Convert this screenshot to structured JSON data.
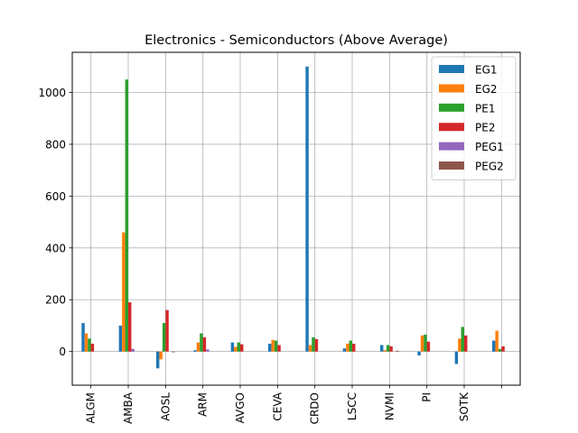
{
  "chart_data": {
    "type": "bar",
    "title": "Electronics - Semiconductors (Above Average)",
    "xlabel": "",
    "ylabel": "",
    "categories": [
      "ALGM",
      "AMBA",
      "AOSL",
      "ARM",
      "AVGO",
      "CEVA",
      "CRDO",
      "LSCC",
      "NVMI",
      "PI",
      "SOTK",
      ""
    ],
    "ylim": [
      -130,
      1155
    ],
    "yticks": [
      0,
      200,
      400,
      600,
      800,
      1000
    ],
    "grid": true,
    "legend_position": "top-right",
    "series": [
      {
        "name": "EG1",
        "color": "#1f77b4",
        "values": [
          110,
          100,
          -65,
          5,
          35,
          30,
          1100,
          12,
          25,
          -15,
          -48,
          42
        ]
      },
      {
        "name": "EG2",
        "color": "#ff7f0e",
        "values": [
          70,
          460,
          -30,
          35,
          18,
          45,
          25,
          30,
          5,
          62,
          50,
          80
        ]
      },
      {
        "name": "PE1",
        "color": "#2ca02c",
        "values": [
          50,
          1050,
          110,
          70,
          35,
          42,
          55,
          42,
          25,
          65,
          95,
          10
        ]
      },
      {
        "name": "PE2",
        "color": "#d62728",
        "values": [
          30,
          190,
          160,
          55,
          28,
          25,
          48,
          30,
          20,
          38,
          62,
          20
        ]
      },
      {
        "name": "PEG1",
        "color": "#9467bd",
        "values": [
          0,
          10,
          0,
          8,
          0,
          0,
          0,
          0,
          0,
          0,
          0,
          0
        ]
      },
      {
        "name": "PEG2",
        "color": "#8c564b",
        "values": [
          0,
          0,
          -3,
          0,
          0,
          0,
          0,
          0,
          3,
          0,
          0,
          0
        ]
      }
    ]
  }
}
